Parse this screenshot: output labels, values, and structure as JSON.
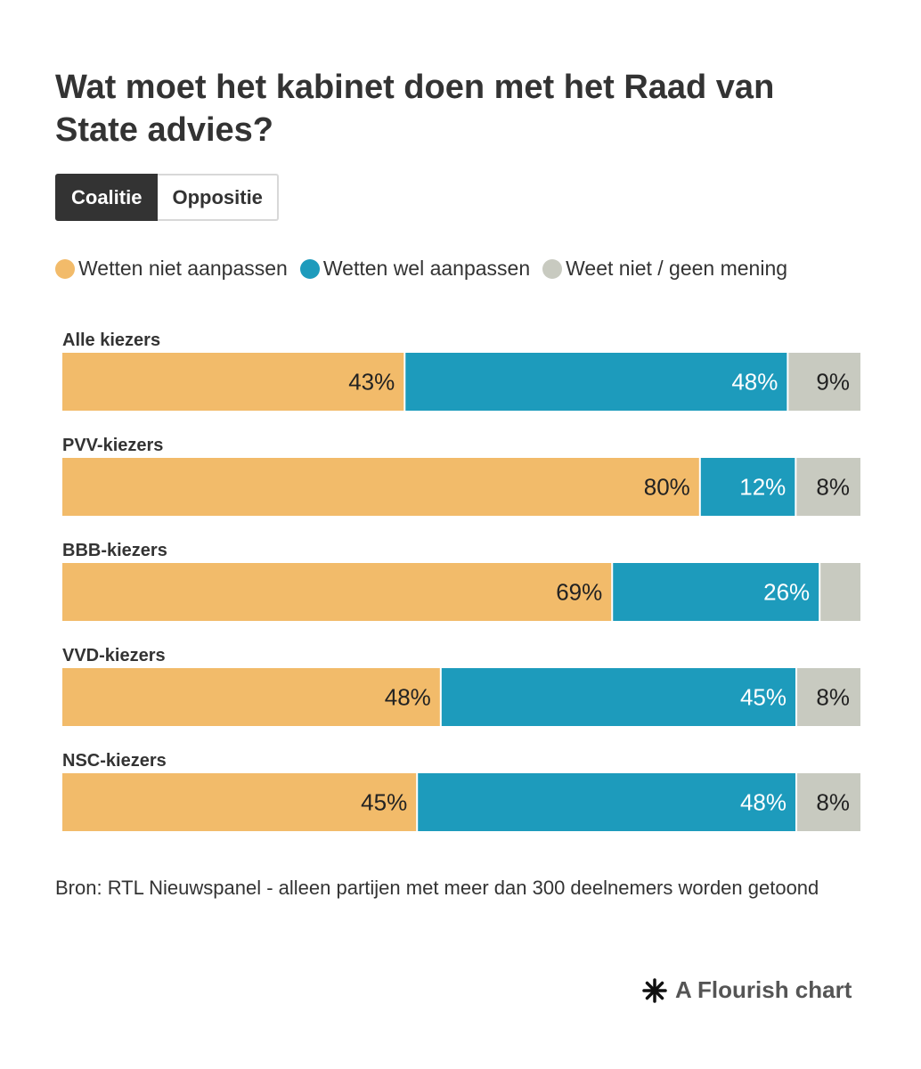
{
  "title": "Wat moet het kabinet doen met het Raad van State advies?",
  "tabs": [
    {
      "label": "Coalitie",
      "active": true
    },
    {
      "label": "Oppositie",
      "active": false
    }
  ],
  "footer": {
    "source": "Bron: RTL Nieuwspanel - alleen partijen met meer dan 300 deelnemers worden getoond"
  },
  "brand": {
    "label": "A Flourish chart",
    "icon": "flourish-asterisk-icon"
  },
  "colors": {
    "series_1": "#f2bb6a",
    "series_2": "#1d9bbc",
    "series_3": "#c8cac0"
  },
  "chart_data": {
    "type": "bar",
    "orientation": "horizontal",
    "stacked": "100%",
    "legend_placement": "top",
    "grid": false,
    "categories": [
      "Alle kiezers",
      "PVV-kiezers",
      "BBB-kiezers",
      "VVD-kiezers",
      "NSC-kiezers"
    ],
    "series": [
      {
        "name": "Wetten niet aanpassen",
        "values": [
          43,
          80,
          69,
          48,
          45
        ],
        "labels": [
          "43%",
          "80%",
          "69%",
          "48%",
          "45%"
        ]
      },
      {
        "name": "Wetten wel aanpassen",
        "values": [
          48,
          12,
          26,
          45,
          48
        ],
        "labels": [
          "48%",
          "12%",
          "26%",
          "45%",
          "48%"
        ]
      },
      {
        "name": "Weet niet / geen mening",
        "values": [
          9,
          8,
          5,
          8,
          8
        ],
        "labels": [
          "9%",
          "8%",
          "",
          "8%",
          "8%"
        ]
      }
    ]
  }
}
